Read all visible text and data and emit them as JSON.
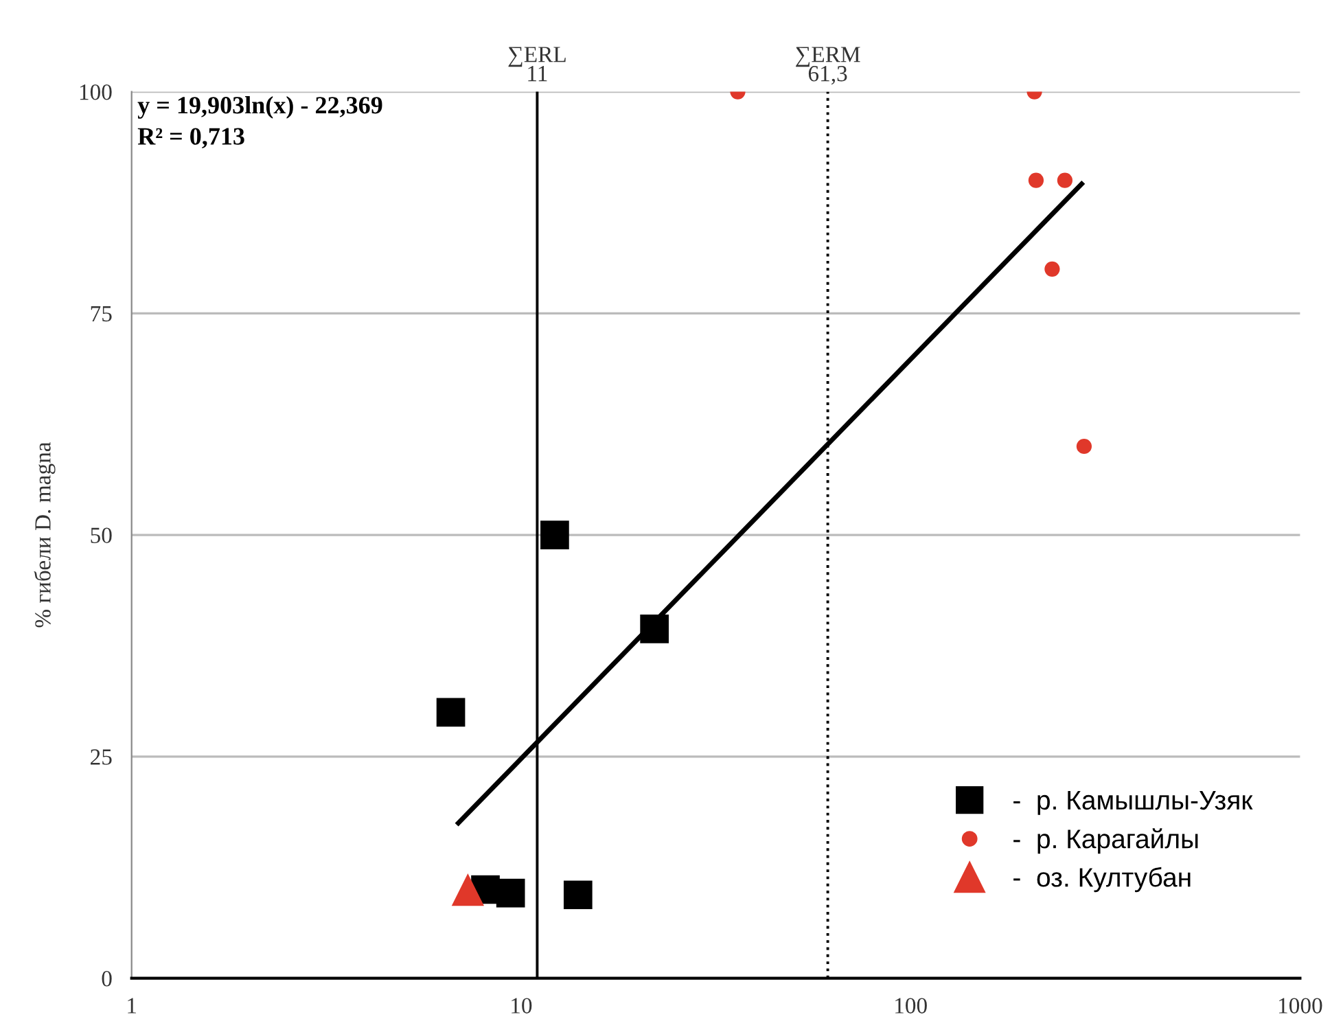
{
  "chart_data": {
    "type": "scatter",
    "ylabel": "% гибели D. magna",
    "log": "x",
    "xlim": [
      1,
      1000
    ],
    "xticks": [
      1,
      10,
      100,
      1000
    ],
    "ylim": [
      0,
      100
    ],
    "yticks": [
      0,
      25,
      50,
      75,
      100
    ],
    "grid": "y",
    "legend": "bottom right",
    "series": [
      {
        "name": "-  р. Камышлы-Узяк",
        "color": "#000000",
        "marker": "square",
        "x": [
          6.6,
          12.2,
          22,
          8.1,
          9.4,
          14
        ],
        "values": [
          30,
          50,
          39.4,
          10,
          9.6,
          9.4
        ]
      },
      {
        "name": "-  р. Карагайлы",
        "color": "#e0382a",
        "marker": "circle",
        "x": [
          36,
          208,
          210,
          249,
          231,
          279
        ],
        "values": [
          100,
          100,
          90,
          90,
          80,
          60
        ]
      },
      {
        "name": "-  оз. Култубан",
        "color": "#e0382a",
        "marker": "triangle",
        "x": [
          7.3
        ],
        "values": [
          10
        ]
      },
      {
        "type": "line",
        "color": "#000000",
        "marker": "none",
        "x": [
          6.9,
          275
        ],
        "values": [
          17.5,
          89.6
        ]
      }
    ],
    "ref_lines": [
      {
        "axis": "x",
        "value": 11,
        "label": "∑ERL\n11",
        "line_style": "solid"
      },
      {
        "axis": "x",
        "value": 61.3,
        "label": "∑ERM\n61,3",
        "line_style": "dotted"
      }
    ],
    "annotations": [
      "y = 19,903ln(x) - 22,369\nR² = 0,713"
    ]
  }
}
